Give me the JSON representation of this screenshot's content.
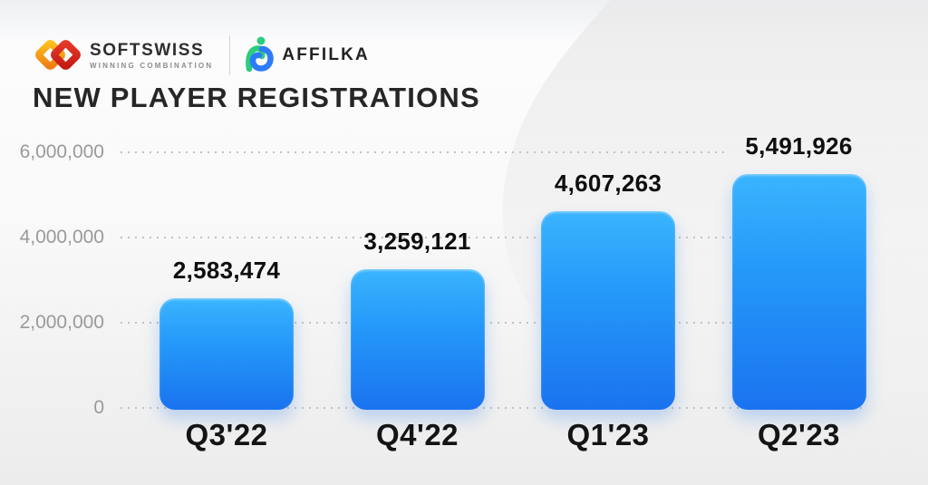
{
  "header": {
    "softswiss_name": "SOFTSWISS",
    "softswiss_tagline": "WINNING COMBINATION",
    "affilka_name": "AFFILKA"
  },
  "title": "NEW PLAYER REGISTRATIONS",
  "chart_data": {
    "type": "bar",
    "title": "NEW PLAYER REGISTRATIONS",
    "categories": [
      "Q3'22",
      "Q4'22",
      "Q1'23",
      "Q2'23"
    ],
    "values": [
      2583474,
      3259121,
      4607263,
      5491926
    ],
    "value_labels": [
      "2,583,474",
      "3,259,121",
      "4,607,263",
      "5,491,926"
    ],
    "xlabel": "",
    "ylabel": "",
    "ylim": [
      0,
      6000000
    ],
    "yticks": [
      0,
      2000000,
      4000000,
      6000000
    ],
    "ytick_labels": [
      "0",
      "2,000,000",
      "4,000,000",
      "6,000,000"
    ],
    "grid": "horizontal-dotted",
    "legend": "none",
    "colors": {
      "bar_gradient_top": "#3ab4fe",
      "bar_gradient_bottom": "#1a73ef",
      "value_label": "#0e0e0e",
      "tick_label": "#9a9a9a",
      "gridline": "#c2c2c2"
    }
  },
  "brand_colors": {
    "softswiss_yellow": "#f9b000",
    "softswiss_orange": "#f07f13",
    "softswiss_red": "#dc2a1c",
    "affilka_green": "#2bcc7e",
    "affilka_blue": "#2d7bf6"
  }
}
